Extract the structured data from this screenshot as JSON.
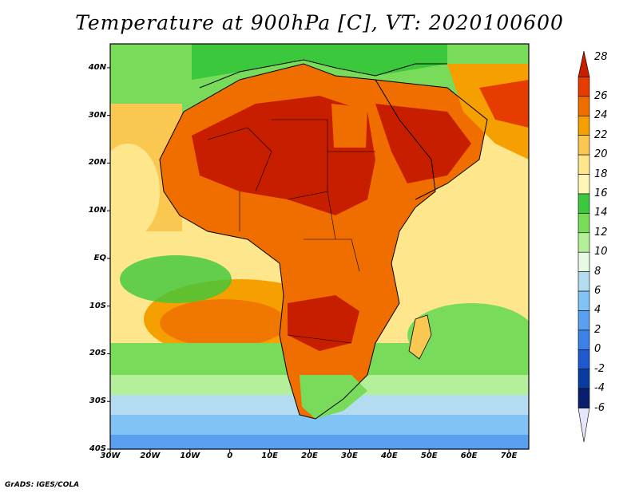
{
  "title": "Temperature at 900hPa [C], VT: 2020100600",
  "credit": "GrADS: IGES/COLA",
  "map": {
    "lon_range": [
      -30,
      75
    ],
    "lat_range": [
      -40,
      45
    ],
    "lat_ticks": [
      {
        "value": 40,
        "label": "40N"
      },
      {
        "value": 30,
        "label": "30N"
      },
      {
        "value": 20,
        "label": "20N"
      },
      {
        "value": 10,
        "label": "10N"
      },
      {
        "value": 0,
        "label": "EQ"
      },
      {
        "value": -10,
        "label": "10S"
      },
      {
        "value": -20,
        "label": "20S"
      },
      {
        "value": -30,
        "label": "30S"
      },
      {
        "value": -40,
        "label": "40S"
      }
    ],
    "lon_ticks": [
      {
        "value": -30,
        "label": "30W"
      },
      {
        "value": -20,
        "label": "20W"
      },
      {
        "value": -10,
        "label": "10W"
      },
      {
        "value": 0,
        "label": "0"
      },
      {
        "value": 10,
        "label": "10E"
      },
      {
        "value": 20,
        "label": "20E"
      },
      {
        "value": 30,
        "label": "30E"
      },
      {
        "value": 40,
        "label": "40E"
      },
      {
        "value": 50,
        "label": "50E"
      },
      {
        "value": 60,
        "label": "60E"
      },
      {
        "value": 70,
        "label": "70E"
      }
    ]
  },
  "colorbar": {
    "levels": [
      "28",
      "26",
      "24",
      "22",
      "20",
      "18",
      "16",
      "14",
      "12",
      "10",
      "8",
      "6",
      "4",
      "2",
      "0",
      "-2",
      "-4",
      "-6"
    ],
    "colors": [
      "#c81e00",
      "#e63c00",
      "#f06e00",
      "#f5a000",
      "#fac850",
      "#fde68c",
      "#fff5b4",
      "#3cc83c",
      "#78dc5a",
      "#b4f09a",
      "#e6fae6",
      "#b4dcf0",
      "#82c3f5",
      "#5aa0f0",
      "#3c82e6",
      "#1e5acd",
      "#0a3ca0",
      "#0a1e6e",
      "#1a0a50"
    ]
  }
}
